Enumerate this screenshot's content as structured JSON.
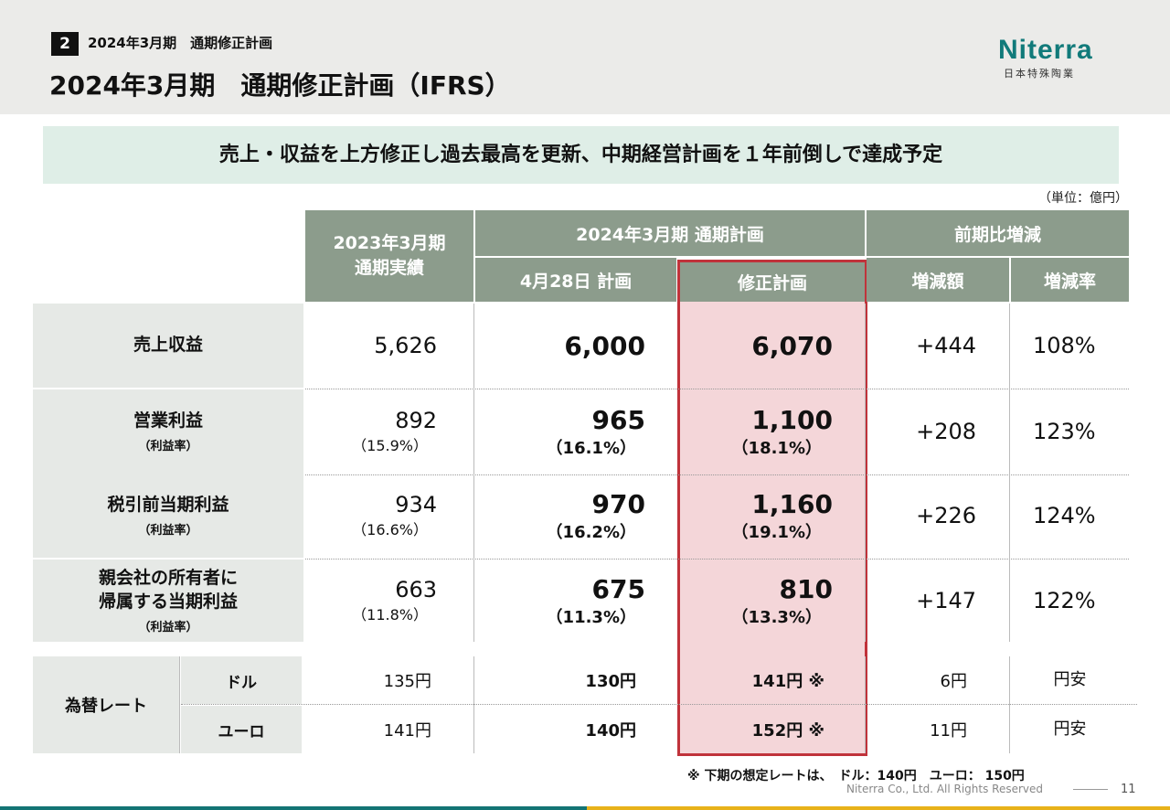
{
  "header": {
    "section_number": "2",
    "section_title": "2024年3月期　通期修正計画",
    "title": "2024年3月期　通期修正計画（IFRS）",
    "logo": "Niterra",
    "logo_sub": "日本特殊陶業"
  },
  "banner": "売上・収益を上方修正し過去最高を更新、中期経営計画を１年前倒しで達成予定",
  "unit": "（単位：億円）",
  "table": {
    "headers": {
      "fy2023": "2023年3月期\n通期実績",
      "fy2024": "2024年3月期 通期計画",
      "plan_apr": "4月28日 計画",
      "revised": "修正計画",
      "yoy": "前期比増減",
      "diff": "増減額",
      "rate": "増減率"
    },
    "rows": [
      {
        "label": "売上収益",
        "sub": "",
        "fy2023": "5,626",
        "fy2023_pct": "",
        "plan": "6,000",
        "plan_pct": "",
        "revised": "6,070",
        "revised_pct": "",
        "diff": "+444",
        "rate": "108%"
      },
      {
        "label": "営業利益",
        "sub": "（利益率）",
        "fy2023": "892",
        "fy2023_pct": "（15.9%）",
        "plan": "965",
        "plan_pct": "（16.1%）",
        "revised": "1,100",
        "revised_pct": "（18.1%）",
        "diff": "+208",
        "rate": "123%"
      },
      {
        "label": "税引前当期利益",
        "sub": "（利益率）",
        "fy2023": "934",
        "fy2023_pct": "（16.6%）",
        "plan": "970",
        "plan_pct": "（16.2%）",
        "revised": "1,160",
        "revised_pct": "（19.1%）",
        "diff": "+226",
        "rate": "124%"
      },
      {
        "label": "親会社の所有者に\n帰属する当期利益",
        "sub": "（利益率）",
        "fy2023": "663",
        "fy2023_pct": "（11.8%）",
        "plan": "675",
        "plan_pct": "（11.3%）",
        "revised": "810",
        "revised_pct": "（13.3%）",
        "diff": "+147",
        "rate": "122%"
      }
    ],
    "fx": {
      "label": "為替レート",
      "rows": [
        {
          "currency": "ドル",
          "fy2023": "135円",
          "plan": "130円",
          "revised": "141円 ※",
          "diff": "6円",
          "note": "円安"
        },
        {
          "currency": "ユーロ",
          "fy2023": "141円",
          "plan": "140円",
          "revised": "152円 ※",
          "diff": "11円",
          "note": "円安"
        }
      ]
    }
  },
  "footnote": "※ 下期の想定レートは、　ドル：140円　ユーロ： 150円",
  "footer": {
    "copyright": "Niterra Co., Ltd. All Rights Reserved",
    "page": "11"
  },
  "colors": {
    "header_fill": "#8c9c8c",
    "highlight_border": "#c0333b",
    "highlight_fill": "#f4d6d9",
    "banner_fill": "#dfeee7",
    "brand": "#117a7a",
    "accent": "#e8b21a"
  }
}
